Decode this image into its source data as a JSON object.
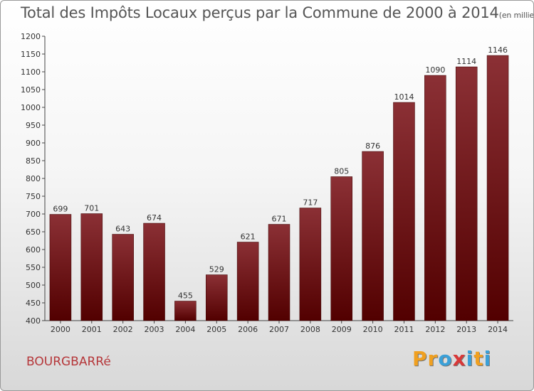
{
  "title": "Total des Impôts Locaux perçus par la Commune de 2000 à 2014",
  "subtitle": "(en milliers d'€)",
  "commune": "BOURGBARRé",
  "logo": {
    "letters": [
      "P",
      "r",
      "o",
      "x",
      "i",
      "t",
      "i"
    ],
    "colors": [
      "#f0a020",
      "#f0a020",
      "#3aa0d8",
      "#d83838",
      "#3aa0d8",
      "#f0a020",
      "#3aa0d8"
    ]
  },
  "colors": {
    "bar_top": "#8b3035",
    "bar_bottom": "#520000"
  },
  "chart_data": {
    "type": "bar",
    "categories": [
      "2000",
      "2001",
      "2002",
      "2003",
      "2004",
      "2005",
      "2006",
      "2007",
      "2008",
      "2009",
      "2010",
      "2011",
      "2012",
      "2013",
      "2014"
    ],
    "values": [
      699,
      701,
      643,
      674,
      455,
      529,
      621,
      671,
      717,
      805,
      876,
      1014,
      1090,
      1114,
      1146
    ],
    "title": "Total des Impôts Locaux perçus par la Commune de 2000 à 2014",
    "subtitle": "(en milliers d'€)",
    "ylim": [
      400,
      1200
    ],
    "yticks": [
      400,
      450,
      500,
      550,
      600,
      650,
      700,
      750,
      800,
      850,
      900,
      950,
      1000,
      1050,
      1100,
      1150,
      1200
    ],
    "grid": false,
    "legend": "none"
  }
}
